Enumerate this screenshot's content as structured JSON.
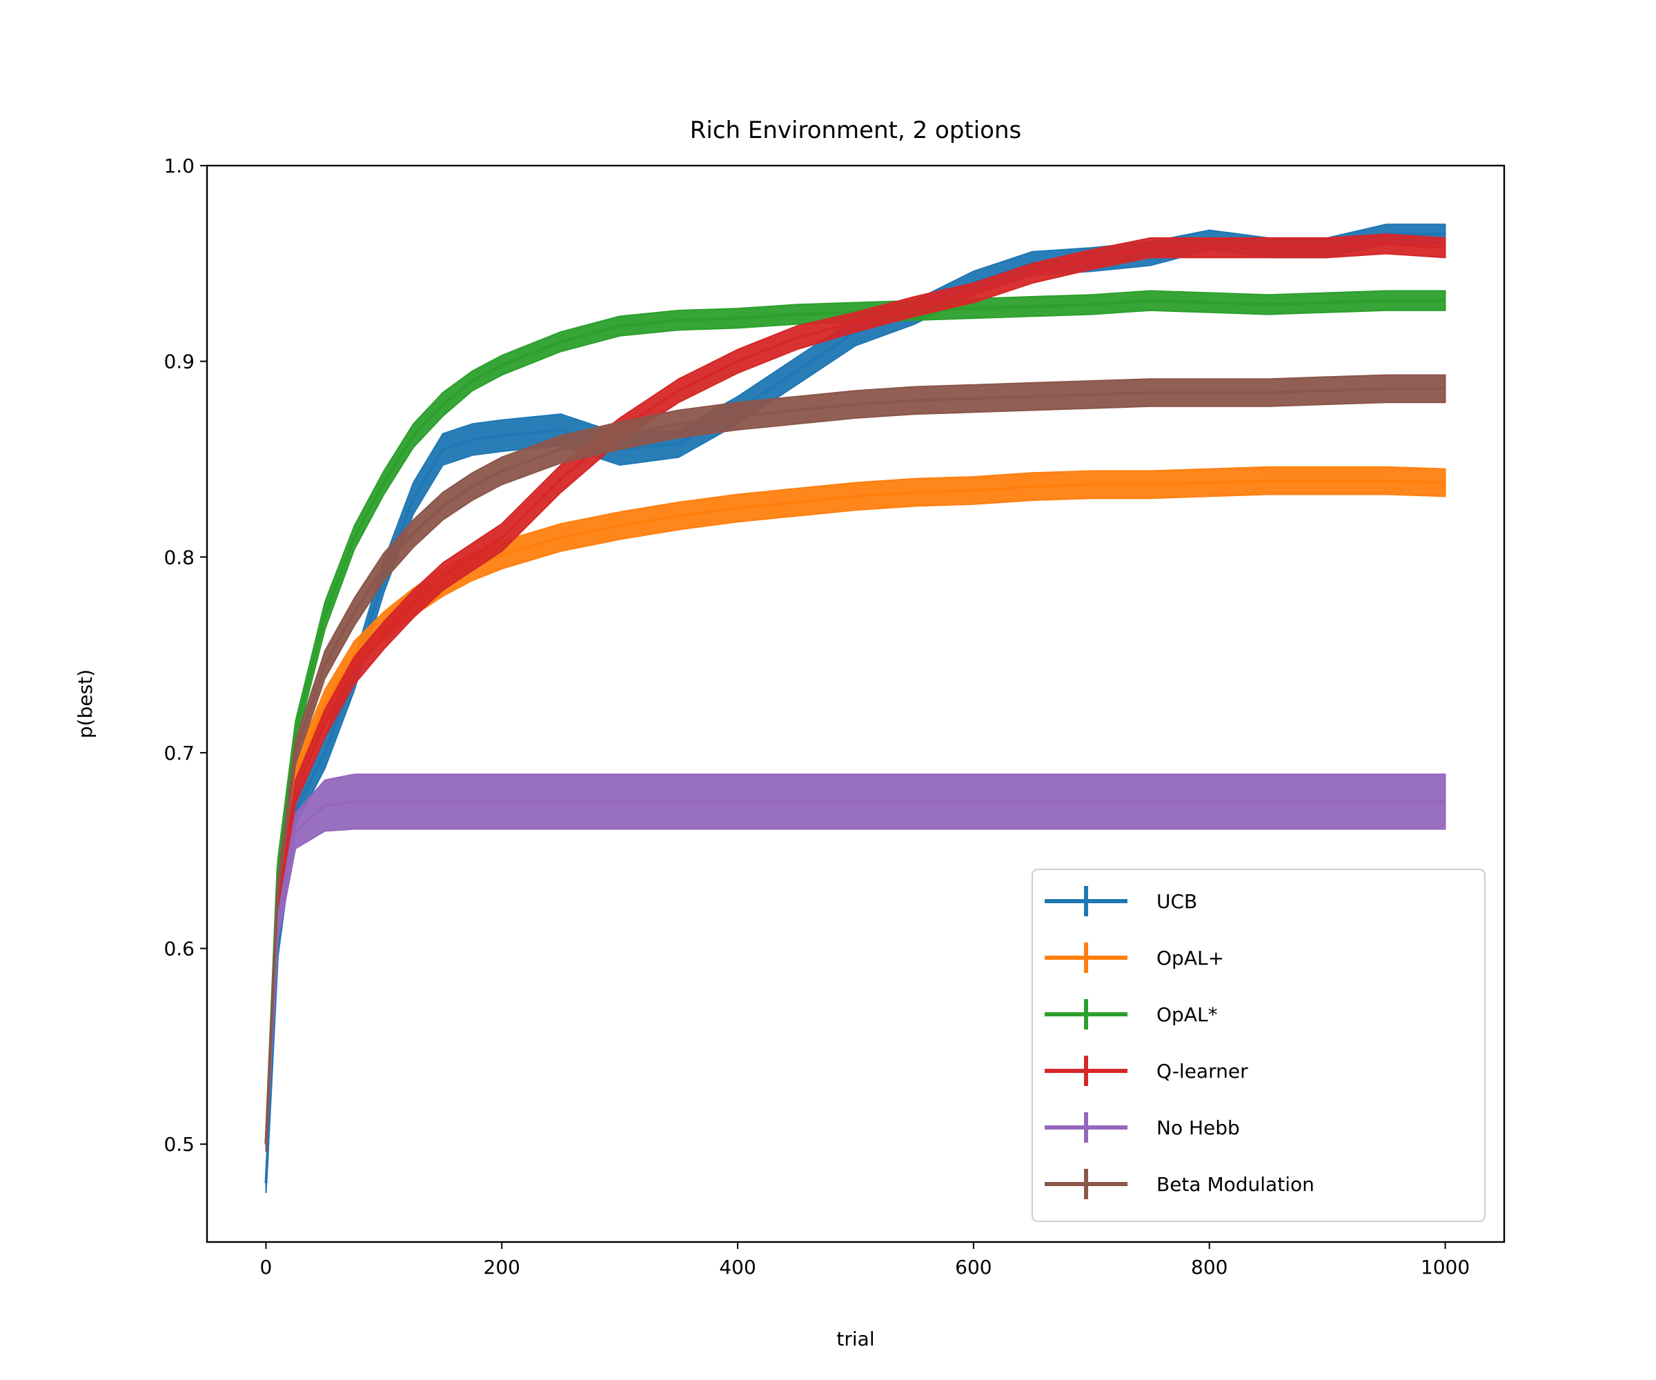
{
  "chart_data": {
    "type": "line",
    "title": "Rich Environment, 2 options",
    "xlabel": "trial",
    "ylabel": "p(best)",
    "xlim": [
      -50,
      1050
    ],
    "ylim": [
      0.45,
      1.0
    ],
    "xticks": [
      0,
      200,
      400,
      600,
      800,
      1000
    ],
    "yticks": [
      0.5,
      0.6,
      0.7,
      0.8,
      0.9,
      1.0
    ],
    "xtick_labels": [
      "0",
      "200",
      "400",
      "600",
      "800",
      "1000"
    ],
    "ytick_labels": [
      "0.5",
      "0.6",
      "0.7",
      "0.8",
      "0.9",
      "1.0"
    ],
    "grid": false,
    "legend_position": "lower right",
    "error_bars": true,
    "series": [
      {
        "name": "UCB",
        "color": "#1f77b4",
        "x": [
          0,
          10,
          25,
          50,
          75,
          100,
          125,
          150,
          175,
          200,
          250,
          300,
          350,
          400,
          450,
          500,
          550,
          600,
          650,
          700,
          750,
          800,
          850,
          900,
          950,
          1000
        ],
        "y": [
          0.48,
          0.6,
          0.67,
          0.7,
          0.74,
          0.79,
          0.83,
          0.855,
          0.86,
          0.862,
          0.865,
          0.855,
          0.858,
          0.875,
          0.895,
          0.915,
          0.925,
          0.94,
          0.95,
          0.952,
          0.955,
          0.962,
          0.958,
          0.958,
          0.965,
          0.965
        ],
        "err": [
          0.005,
          0.005,
          0.007,
          0.008,
          0.008,
          0.008,
          0.008,
          0.008,
          0.008,
          0.008,
          0.008,
          0.008,
          0.007,
          0.007,
          0.007,
          0.007,
          0.006,
          0.006,
          0.006,
          0.006,
          0.006,
          0.005,
          0.005,
          0.005,
          0.005,
          0.005
        ]
      },
      {
        "name": "OpAL+",
        "color": "#ff7f0e",
        "x": [
          0,
          10,
          25,
          50,
          75,
          100,
          125,
          150,
          175,
          200,
          250,
          300,
          350,
          400,
          450,
          500,
          550,
          600,
          650,
          700,
          750,
          800,
          850,
          900,
          950,
          1000
        ],
        "y": [
          0.5,
          0.63,
          0.69,
          0.725,
          0.75,
          0.765,
          0.777,
          0.787,
          0.795,
          0.801,
          0.81,
          0.816,
          0.821,
          0.825,
          0.828,
          0.831,
          0.833,
          0.834,
          0.836,
          0.837,
          0.837,
          0.838,
          0.839,
          0.839,
          0.839,
          0.838
        ],
        "err": [
          0.004,
          0.005,
          0.006,
          0.007,
          0.007,
          0.007,
          0.007,
          0.007,
          0.007,
          0.007,
          0.007,
          0.007,
          0.007,
          0.007,
          0.007,
          0.007,
          0.007,
          0.007,
          0.007,
          0.007,
          0.007,
          0.007,
          0.007,
          0.007,
          0.007,
          0.007
        ]
      },
      {
        "name": "OpAL*",
        "color": "#2ca02c",
        "x": [
          0,
          10,
          25,
          50,
          75,
          100,
          125,
          150,
          175,
          200,
          250,
          300,
          350,
          400,
          450,
          500,
          550,
          600,
          650,
          700,
          750,
          800,
          850,
          900,
          950,
          1000
        ],
        "y": [
          0.5,
          0.64,
          0.71,
          0.77,
          0.81,
          0.838,
          0.862,
          0.878,
          0.89,
          0.898,
          0.91,
          0.918,
          0.921,
          0.922,
          0.924,
          0.925,
          0.926,
          0.927,
          0.928,
          0.929,
          0.931,
          0.93,
          0.929,
          0.93,
          0.931,
          0.931
        ],
        "err": [
          0.004,
          0.005,
          0.006,
          0.007,
          0.006,
          0.006,
          0.006,
          0.006,
          0.005,
          0.005,
          0.005,
          0.005,
          0.005,
          0.005,
          0.005,
          0.005,
          0.005,
          0.005,
          0.005,
          0.005,
          0.005,
          0.005,
          0.005,
          0.005,
          0.005,
          0.005
        ]
      },
      {
        "name": "Q-learner",
        "color": "#d62728",
        "x": [
          0,
          10,
          25,
          50,
          75,
          100,
          125,
          150,
          175,
          200,
          250,
          300,
          350,
          400,
          450,
          500,
          550,
          600,
          650,
          700,
          750,
          800,
          850,
          900,
          950,
          1000
        ],
        "y": [
          0.5,
          0.62,
          0.68,
          0.715,
          0.742,
          0.76,
          0.776,
          0.79,
          0.8,
          0.81,
          0.84,
          0.865,
          0.885,
          0.9,
          0.912,
          0.92,
          0.928,
          0.935,
          0.945,
          0.952,
          0.958,
          0.958,
          0.958,
          0.958,
          0.96,
          0.958
        ],
        "err": [
          0.004,
          0.005,
          0.006,
          0.007,
          0.007,
          0.007,
          0.007,
          0.007,
          0.007,
          0.007,
          0.007,
          0.006,
          0.006,
          0.006,
          0.006,
          0.005,
          0.005,
          0.005,
          0.005,
          0.005,
          0.005,
          0.005,
          0.005,
          0.005,
          0.005,
          0.005
        ]
      },
      {
        "name": "No Hebb",
        "color": "#9467bd",
        "x": [
          0,
          10,
          25,
          50,
          75,
          100,
          125,
          150,
          175,
          200,
          250,
          300,
          350,
          400,
          450,
          500,
          550,
          600,
          650,
          700,
          750,
          800,
          850,
          900,
          950,
          1000
        ],
        "y": [
          0.5,
          0.61,
          0.66,
          0.673,
          0.675,
          0.675,
          0.675,
          0.675,
          0.675,
          0.675,
          0.675,
          0.675,
          0.675,
          0.675,
          0.675,
          0.675,
          0.675,
          0.675,
          0.675,
          0.675,
          0.675,
          0.675,
          0.675,
          0.675,
          0.675,
          0.675
        ],
        "err": [
          0.004,
          0.006,
          0.009,
          0.013,
          0.014,
          0.014,
          0.014,
          0.014,
          0.014,
          0.014,
          0.014,
          0.014,
          0.014,
          0.014,
          0.014,
          0.014,
          0.014,
          0.014,
          0.014,
          0.014,
          0.014,
          0.014,
          0.014,
          0.014,
          0.014,
          0.014
        ]
      },
      {
        "name": "Beta Modulation",
        "color": "#8c564b",
        "x": [
          0,
          10,
          25,
          50,
          75,
          100,
          125,
          150,
          175,
          200,
          250,
          300,
          350,
          400,
          450,
          500,
          550,
          600,
          650,
          700,
          750,
          800,
          850,
          900,
          950,
          1000
        ],
        "y": [
          0.5,
          0.63,
          0.7,
          0.745,
          0.772,
          0.795,
          0.812,
          0.826,
          0.836,
          0.844,
          0.855,
          0.862,
          0.868,
          0.872,
          0.875,
          0.878,
          0.88,
          0.881,
          0.882,
          0.883,
          0.884,
          0.884,
          0.884,
          0.885,
          0.886,
          0.886
        ],
        "err": [
          0.004,
          0.005,
          0.006,
          0.007,
          0.007,
          0.007,
          0.007,
          0.007,
          0.007,
          0.007,
          0.007,
          0.007,
          0.007,
          0.007,
          0.007,
          0.007,
          0.007,
          0.007,
          0.007,
          0.007,
          0.007,
          0.007,
          0.007,
          0.007,
          0.007,
          0.007
        ]
      }
    ]
  }
}
